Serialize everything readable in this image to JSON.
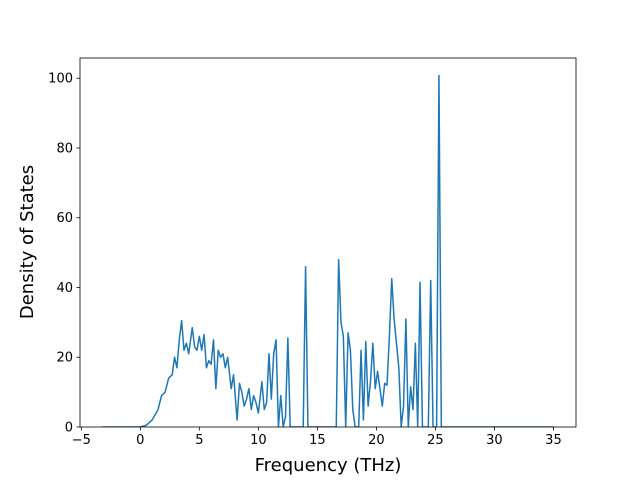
{
  "chart_data": {
    "type": "line",
    "xlabel": "Frequency (THz)",
    "ylabel": "Density of States",
    "color": "#1f77b4",
    "x": [
      -3.2,
      0,
      0.5,
      1,
      1.5,
      1.8,
      2.1,
      2.4,
      2.7,
      2.9,
      3.1,
      3.3,
      3.5,
      3.7,
      3.9,
      4.1,
      4.4,
      4.6,
      4.8,
      5.0,
      5.2,
      5.4,
      5.6,
      5.8,
      6.0,
      6.2,
      6.4,
      6.6,
      6.8,
      7.0,
      7.2,
      7.4,
      7.7,
      7.9,
      8.2,
      8.4,
      8.6,
      8.8,
      9.0,
      9.2,
      9.4,
      9.6,
      9.8,
      10.0,
      10.3,
      10.5,
      10.7,
      10.9,
      11.1,
      11.3,
      11.5,
      11.7,
      11.9,
      12.1,
      12.3,
      12.5,
      12.7,
      13.8,
      14.0,
      14.2,
      16.6,
      16.8,
      17.0,
      17.2,
      17.4,
      17.6,
      17.8,
      18.0,
      18.2,
      18.5,
      18.7,
      18.9,
      19.1,
      19.3,
      19.5,
      19.7,
      19.9,
      20.1,
      20.3,
      20.5,
      20.7,
      20.9,
      21.1,
      21.3,
      21.5,
      21.7,
      21.9,
      22.1,
      22.3,
      22.5,
      22.7,
      22.9,
      23.1,
      23.3,
      23.5,
      23.7,
      23.9,
      24.4,
      24.6,
      24.8,
      25.1,
      25.3,
      25.5,
      35
    ],
    "values": [
      0,
      0,
      0.5,
      2,
      5,
      9,
      10,
      14,
      15,
      20,
      17,
      25,
      30.5,
      22,
      24,
      21,
      28.5,
      23,
      22,
      26,
      22,
      26.5,
      17,
      19,
      18,
      25,
      11,
      22,
      20,
      21,
      17,
      20,
      11,
      15,
      2,
      12.5,
      10,
      6,
      8,
      11,
      5,
      9,
      7,
      4,
      13,
      5,
      7,
      21,
      8,
      21,
      25,
      0,
      9,
      0,
      3,
      25.5,
      0,
      0,
      46,
      0,
      0,
      48,
      30,
      26,
      0,
      27,
      22,
      5,
      0,
      0,
      22,
      2,
      24.5,
      6,
      13,
      24,
      11,
      16,
      11,
      6,
      12.5,
      12,
      26,
      42.5,
      31,
      24,
      17,
      0,
      6,
      31,
      0,
      11.5,
      5,
      24,
      0,
      41.5,
      0,
      0,
      42,
      0,
      0,
      100.8,
      0,
      0
    ],
    "xlim": [
      -5.11,
      36.91
    ],
    "ylim": [
      0,
      105.8
    ],
    "xticks": [
      {
        "value": -5,
        "label": "−5"
      },
      0,
      5,
      10,
      15,
      20,
      25,
      30,
      35
    ],
    "yticks": [
      0,
      20,
      40,
      60,
      80,
      100
    ]
  }
}
